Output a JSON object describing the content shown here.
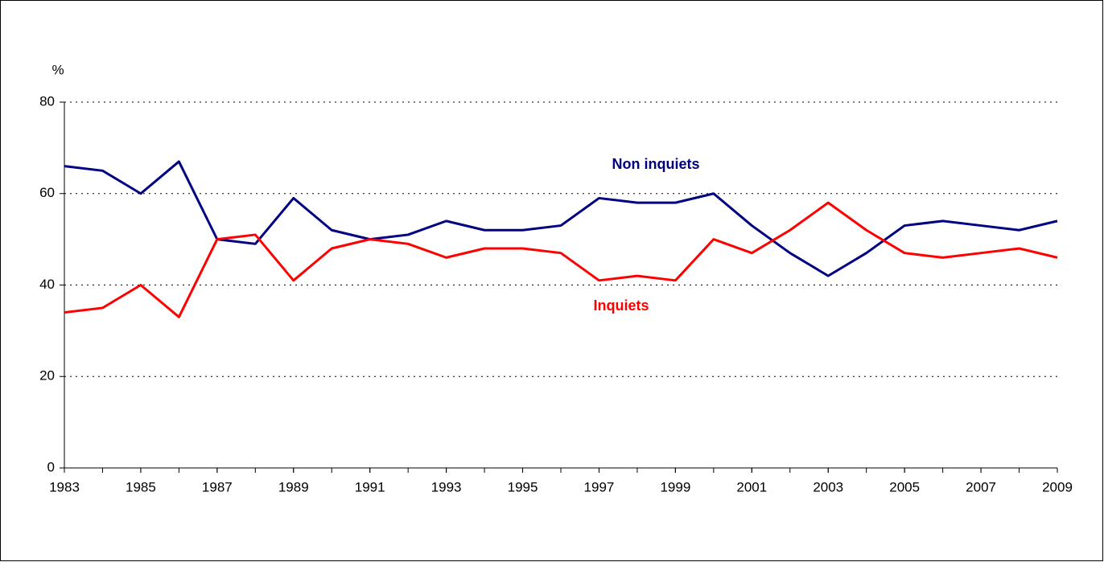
{
  "chart_data": {
    "type": "line",
    "y_label": "%",
    "x": [
      1983,
      1984,
      1985,
      1986,
      1987,
      1988,
      1989,
      1990,
      1991,
      1992,
      1993,
      1994,
      1995,
      1996,
      1997,
      1998,
      1999,
      2000,
      2001,
      2002,
      2003,
      2004,
      2005,
      2006,
      2007,
      2008,
      2009
    ],
    "xlim": [
      1983,
      2009
    ],
    "xticks": [
      1983,
      1985,
      1987,
      1989,
      1991,
      1993,
      1995,
      1997,
      1999,
      2001,
      2003,
      2005,
      2007,
      2009
    ],
    "ylim": [
      0,
      80
    ],
    "yticks": [
      0,
      20,
      40,
      60,
      80
    ],
    "grid": true,
    "series": [
      {
        "name": "Non inquiets",
        "color": "#000080",
        "values": [
          66,
          65,
          60,
          67,
          50,
          49,
          59,
          52,
          50,
          51,
          54,
          52,
          52,
          53,
          59,
          58,
          58,
          60,
          53,
          47,
          42,
          47,
          53,
          54,
          53,
          52,
          54
        ]
      },
      {
        "name": "Inquiets",
        "color": "#ff0000",
        "values": [
          34,
          35,
          40,
          33,
          50,
          51,
          41,
          48,
          50,
          49,
          46,
          48,
          48,
          47,
          41,
          42,
          41,
          50,
          47,
          52,
          58,
          52,
          47,
          46,
          47,
          48,
          46
        ]
      }
    ]
  }
}
